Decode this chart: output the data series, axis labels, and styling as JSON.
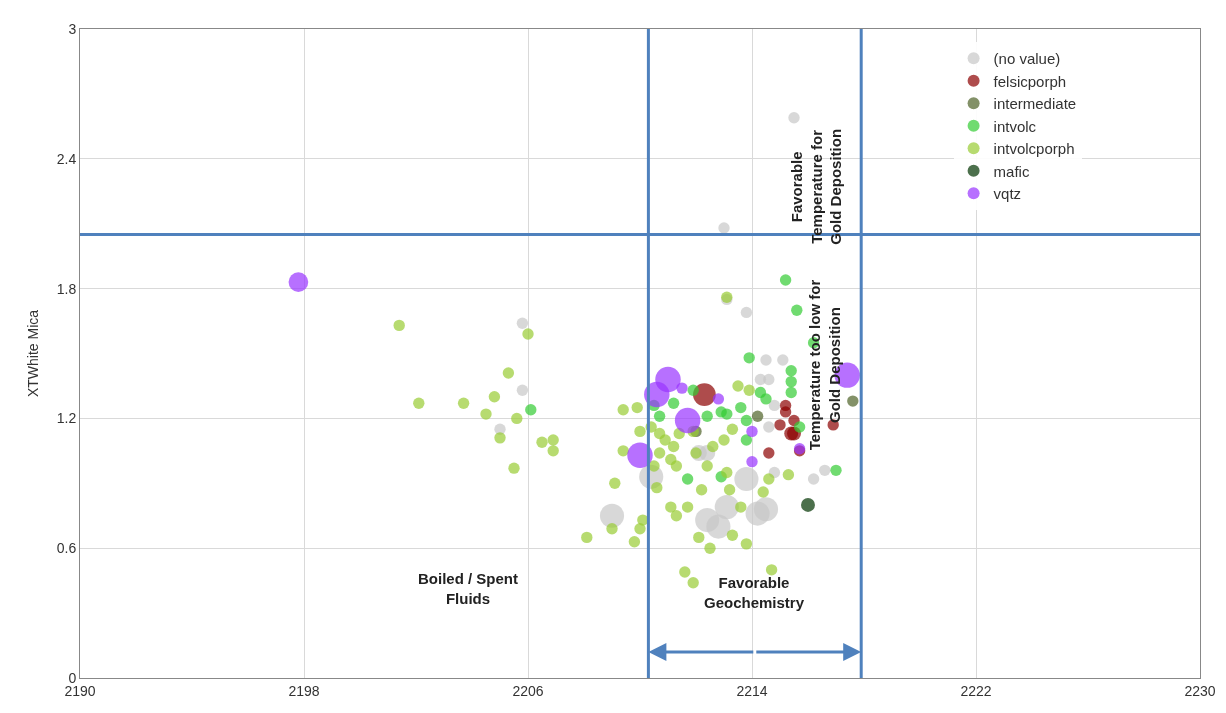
{
  "chart_data": {
    "type": "bubble",
    "ylabel": "XTWhite Mica",
    "xlim": [
      2190,
      2230
    ],
    "xticks": [
      2190,
      2198,
      2206,
      2214,
      2222,
      2230
    ],
    "ylim": [
      0,
      3
    ],
    "yticks": [
      0,
      0.6,
      1.2,
      1.8,
      2.4,
      3
    ],
    "grid": true,
    "legend": "top right",
    "marker": "circle",
    "ref_lines": [
      {
        "axis": "x",
        "value": 2210.3,
        "color": "#4f81bd"
      },
      {
        "axis": "x",
        "value": 2217.9,
        "color": "#4f81bd"
      },
      {
        "axis": "y",
        "value": 2.05,
        "color": "#4f81bd"
      }
    ],
    "annotations": [
      "Boiled / Spent\nFluids",
      "Favorable\nGeochemistry",
      "Favorable\nTemperature for\nGold Deposition",
      "Temperature too low for\nGold Deposition"
    ],
    "series": [
      {
        "name": "(no value)",
        "color": "#c8c8c8",
        "x": [
          2213.0,
          2215.5,
          2213.1,
          2213.8,
          2205.8,
          2205.8,
          2205.0,
          2214.5,
          2215.1,
          2214.6,
          2214.3,
          2214.8,
          2214.6,
          2216.6,
          2216.2,
          2214.8,
          2209.0,
          2210.4,
          2213.8,
          2213.1,
          2212.4,
          2212.8,
          2214.2,
          2214.5,
          2212.1,
          2212.4
        ],
        "values": [
          2.08,
          2.59,
          1.75,
          1.69,
          1.64,
          1.33,
          1.15,
          1.47,
          1.47,
          1.38,
          1.38,
          1.26,
          1.16,
          0.96,
          0.92,
          0.95,
          0.75,
          0.93,
          0.92,
          0.79,
          0.73,
          0.7,
          0.76,
          0.78,
          1.04,
          1.04
        ],
        "sizes": [
          0.2,
          0.2,
          0.2,
          0.2,
          0.2,
          0.2,
          0.2,
          0.2,
          0.2,
          0.2,
          0.2,
          0.2,
          0.2,
          0.2,
          0.2,
          0.2,
          0.9,
          0.9,
          0.9,
          0.9,
          0.9,
          0.9,
          0.9,
          0.9,
          0.4,
          0.4
        ]
      },
      {
        "name": "felsicporph",
        "color": "#8b0000",
        "x": [
          2212.3,
          2215.2,
          2215.2,
          2215.5,
          2215.0,
          2215.4,
          2215.5,
          2214.6,
          2216.9,
          2215.7
        ],
        "values": [
          1.31,
          1.26,
          1.23,
          1.19,
          1.17,
          1.13,
          1.13,
          1.04,
          1.17,
          1.05
        ],
        "sizes": [
          0.8,
          0.2,
          0.2,
          0.2,
          0.2,
          0.3,
          0.3,
          0.2,
          0.2,
          0.2
        ]
      },
      {
        "name": "intermediate",
        "color": "#4f6228",
        "x": [
          2217.6,
          2214.2,
          2212.0
        ],
        "values": [
          1.28,
          1.21,
          1.14
        ],
        "sizes": [
          0.2,
          0.2,
          0.2
        ]
      },
      {
        "name": "intvolc",
        "color": "#33cc33",
        "x": [
          2213.9,
          2215.2,
          2215.4,
          2215.4,
          2215.4,
          2215.7,
          2217.0,
          2213.6,
          2213.8,
          2212.9,
          2213.1,
          2212.4,
          2211.9,
          2211.2,
          2210.7,
          2210.5,
          2211.7,
          2212.9,
          2214.3,
          2214.5,
          2213.8,
          2216.2,
          2215.6,
          2206.1
        ],
        "values": [
          1.48,
          1.84,
          1.42,
          1.37,
          1.32,
          1.16,
          0.96,
          1.25,
          1.1,
          1.23,
          1.22,
          1.21,
          1.33,
          1.27,
          1.21,
          1.26,
          0.92,
          0.93,
          1.32,
          1.29,
          1.19,
          1.55,
          1.7,
          1.24
        ],
        "sizes": [
          0.2,
          0.2,
          0.2,
          0.2,
          0.2,
          0.2,
          0.2,
          0.2,
          0.2,
          0.2,
          0.2,
          0.2,
          0.2,
          0.2,
          0.2,
          0.2,
          0.2,
          0.2,
          0.2,
          0.2,
          0.2,
          0.2,
          0.2,
          0.2
        ]
      },
      {
        "name": "intvolcporph",
        "color": "#99cc33",
        "x": [
          2201.4,
          2206.0,
          2205.3,
          2204.8,
          2202.1,
          2203.7,
          2204.5,
          2205.6,
          2205.0,
          2206.5,
          2206.9,
          2206.9,
          2205.5,
          2213.1,
          2208.1,
          2209.0,
          2209.8,
          2209.1,
          2209.4,
          2209.4,
          2209.9,
          2210.0,
          2210.7,
          2210.9,
          2211.2,
          2211.4,
          2210.7,
          2211.1,
          2211.3,
          2210.5,
          2210.6,
          2211.1,
          2211.3,
          2211.7,
          2212.2,
          2212.4,
          2212.0,
          2212.6,
          2213.0,
          2213.3,
          2213.5,
          2213.9,
          2213.1,
          2213.2,
          2213.6,
          2212.1,
          2213.3,
          2213.8,
          2212.5,
          2214.4,
          2214.6,
          2215.3,
          2211.6,
          2211.9,
          2214.7,
          2210.1,
          2210.0,
          2210.4,
          2211.9
        ],
        "values": [
          1.63,
          1.59,
          1.41,
          1.3,
          1.27,
          1.27,
          1.22,
          1.2,
          1.11,
          1.09,
          1.1,
          1.05,
          0.97,
          1.76,
          0.65,
          0.69,
          0.63,
          0.9,
          1.05,
          1.24,
          1.25,
          1.14,
          1.13,
          1.1,
          1.07,
          1.13,
          1.04,
          1.01,
          0.98,
          0.98,
          0.88,
          0.79,
          0.75,
          0.79,
          0.87,
          0.98,
          1.04,
          1.07,
          1.1,
          1.15,
          1.35,
          1.33,
          0.95,
          0.87,
          0.79,
          0.65,
          0.66,
          0.62,
          0.6,
          0.86,
          0.92,
          0.94,
          0.49,
          0.44,
          0.5,
          0.73,
          0.69,
          1.16,
          1.14
        ],
        "sizes": [
          0.2,
          0.2,
          0.2,
          0.2,
          0.2,
          0.2,
          0.2,
          0.2,
          0.2,
          0.2,
          0.2,
          0.2,
          0.2,
          0.2,
          0.2,
          0.2,
          0.2,
          0.2,
          0.2,
          0.2,
          0.2,
          0.2,
          0.2,
          0.2,
          0.2,
          0.2,
          0.2,
          0.2,
          0.2,
          0.2,
          0.2,
          0.2,
          0.2,
          0.2,
          0.2,
          0.2,
          0.2,
          0.2,
          0.2,
          0.2,
          0.2,
          0.2,
          0.2,
          0.2,
          0.2,
          0.2,
          0.2,
          0.2,
          0.2,
          0.2,
          0.2,
          0.2,
          0.2,
          0.2,
          0.2,
          0.2,
          0.2,
          0.2,
          0.2
        ]
      },
      {
        "name": "mafic",
        "color": "#003300",
        "x": [
          2216.0
        ],
        "values": [
          0.8
        ],
        "sizes": [
          0.3
        ]
      },
      {
        "name": "vqtz",
        "color": "#9933ff",
        "x": [
          2197.8,
          2211.0,
          2210.6,
          2211.7,
          2210.0,
          2217.4,
          2211.5,
          2212.8,
          2214.0,
          2214.0,
          2215.7
        ],
        "values": [
          1.83,
          1.38,
          1.31,
          1.19,
          1.03,
          1.4,
          1.34,
          1.29,
          1.14,
          1.0,
          1.06
        ],
        "sizes": [
          0.6,
          1,
          1,
          1,
          1,
          1,
          0.2,
          0.2,
          0.2,
          0.2,
          0.2
        ]
      }
    ]
  }
}
